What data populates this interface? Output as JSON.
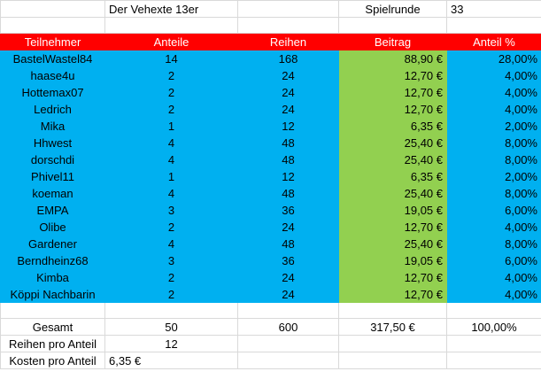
{
  "title_cell": "Der Vehexte 13er",
  "round_label": "Spielrunde",
  "round_value": "33",
  "headers": [
    "Teilnehmer",
    "Anteile",
    "Reihen",
    "Beitrag",
    "Anteil %"
  ],
  "rows": [
    {
      "name": "BastelWastel84",
      "anteile": "14",
      "reihen": "168",
      "beitrag": "88,90 €",
      "pct": "28,00%"
    },
    {
      "name": "haase4u",
      "anteile": "2",
      "reihen": "24",
      "beitrag": "12,70 €",
      "pct": "4,00%"
    },
    {
      "name": "Hottemax07",
      "anteile": "2",
      "reihen": "24",
      "beitrag": "12,70 €",
      "pct": "4,00%"
    },
    {
      "name": "Ledrich",
      "anteile": "2",
      "reihen": "24",
      "beitrag": "12,70 €",
      "pct": "4,00%"
    },
    {
      "name": "Mika",
      "anteile": "1",
      "reihen": "12",
      "beitrag": "6,35 €",
      "pct": "2,00%"
    },
    {
      "name": "Hhwest",
      "anteile": "4",
      "reihen": "48",
      "beitrag": "25,40 €",
      "pct": "8,00%"
    },
    {
      "name": "dorschdi",
      "anteile": "4",
      "reihen": "48",
      "beitrag": "25,40 €",
      "pct": "8,00%"
    },
    {
      "name": "Phivel11",
      "anteile": "1",
      "reihen": "12",
      "beitrag": "6,35 €",
      "pct": "2,00%"
    },
    {
      "name": "koeman",
      "anteile": "4",
      "reihen": "48",
      "beitrag": "25,40 €",
      "pct": "8,00%"
    },
    {
      "name": "EMPA",
      "anteile": "3",
      "reihen": "36",
      "beitrag": "19,05 €",
      "pct": "6,00%"
    },
    {
      "name": "Olibe",
      "anteile": "2",
      "reihen": "24",
      "beitrag": "12,70 €",
      "pct": "4,00%"
    },
    {
      "name": "Gardener",
      "anteile": "4",
      "reihen": "48",
      "beitrag": "25,40 €",
      "pct": "8,00%"
    },
    {
      "name": "Berndheinz68",
      "anteile": "3",
      "reihen": "36",
      "beitrag": "19,05 €",
      "pct": "6,00%"
    },
    {
      "name": "Kimba",
      "anteile": "2",
      "reihen": "24",
      "beitrag": "12,70 €",
      "pct": "4,00%"
    },
    {
      "name": "Köppi Nachbarin",
      "anteile": "2",
      "reihen": "24",
      "beitrag": "12,70 €",
      "pct": "4,00%"
    }
  ],
  "totals": {
    "label": "Gesamt",
    "anteile": "50",
    "reihen": "600",
    "beitrag": "317,50 €",
    "pct": "100,00%"
  },
  "reihen_pro_anteil": {
    "label": "Reihen pro Anteil",
    "value": "12"
  },
  "kosten_pro_anteil": {
    "label": "Kosten pro Anteil",
    "value": "6,35 €"
  },
  "colors": {
    "header_bg": "#ff0000",
    "row_bg": "#00b0f0",
    "beitrag_bg": "#92d050",
    "header_text": "#ffffff"
  }
}
